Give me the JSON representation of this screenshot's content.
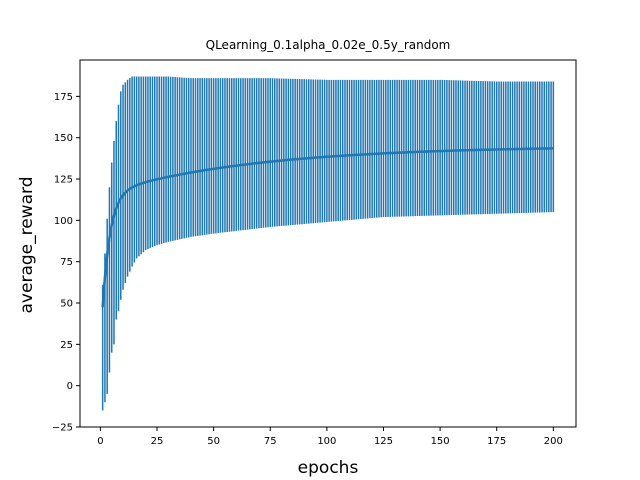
{
  "chart_data": {
    "type": "line",
    "title": "QLearning_0.1alpha_0.02e_0.5y_random",
    "xlabel": "epochs",
    "ylabel": "average_reward",
    "xlim": [
      -9,
      210
    ],
    "ylim": [
      -25,
      197
    ],
    "xticks": [
      0,
      25,
      50,
      75,
      100,
      125,
      150,
      175,
      200
    ],
    "yticks": [
      -25,
      0,
      25,
      50,
      75,
      100,
      125,
      150,
      175
    ],
    "grid": false,
    "legend": "none",
    "error_bars": true,
    "series_color": "#1f77b4",
    "mean_model": {
      "start": 23,
      "plateau": 145,
      "fast_rate": 0.3,
      "fast_weight": 0.76,
      "slow_rate": 0.015
    },
    "band_samples": {
      "x": [
        1,
        2,
        3,
        4,
        5,
        6,
        7,
        8,
        9,
        10,
        12,
        14,
        16,
        20,
        25,
        30,
        40,
        50,
        75,
        100,
        125,
        150,
        175,
        200
      ],
      "upper": [
        61,
        80,
        101,
        120,
        135,
        148,
        160,
        170,
        178,
        182,
        185,
        187,
        187,
        187,
        187,
        187,
        186,
        186,
        186,
        185,
        185,
        185,
        184,
        184
      ],
      "lower": [
        -15,
        -10,
        -5,
        8,
        20,
        25,
        40,
        45,
        52,
        58,
        66,
        72,
        77,
        82,
        85,
        87,
        90,
        92,
        96,
        99,
        102,
        103,
        104,
        105
      ]
    }
  }
}
